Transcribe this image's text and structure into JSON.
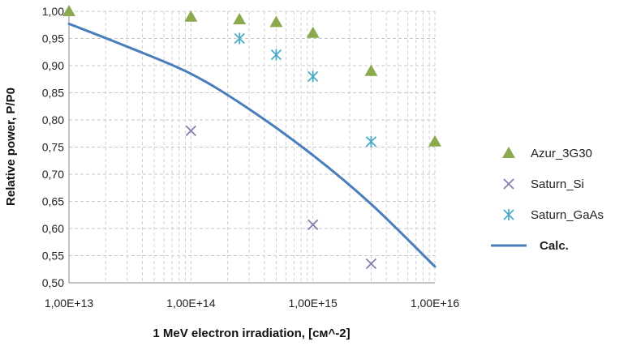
{
  "chart_data": {
    "type": "scatter",
    "title": "",
    "xlabel": "1 MeV electron irradiation, [см^-2]",
    "ylabel": "Relative power, P/P0",
    "x_scale": "log",
    "xlim": [
      10000000000000.0,
      1e+16
    ],
    "ylim": [
      0.5,
      1.0
    ],
    "x_tick_labels": [
      "1,00E+13",
      "1,00E+14",
      "1,00E+15",
      "1,00E+16"
    ],
    "y_tick_labels": [
      "1,00",
      "0,95",
      "0,90",
      "0,85",
      "0,80",
      "0,75",
      "0,70",
      "0,65",
      "0,60",
      "0,55",
      "0,50"
    ],
    "grid": "dashed",
    "legend_position": "right",
    "series": [
      {
        "name": "Azur_3G30",
        "kind": "scatter",
        "marker": "triangle",
        "color": "#8BAA4E",
        "points": [
          [
            10000000000000.0,
            1.0
          ],
          [
            100000000000000.0,
            0.99
          ],
          [
            250000000000000.0,
            0.985
          ],
          [
            500000000000000.0,
            0.98
          ],
          [
            1000000000000000.0,
            0.96
          ],
          [
            3000000000000000.0,
            0.89
          ],
          [
            1e+16,
            0.76
          ]
        ]
      },
      {
        "name": "Saturn_Si",
        "kind": "scatter",
        "marker": "x",
        "color": "#8A7BB0",
        "points": [
          [
            100000000000000.0,
            0.78
          ],
          [
            1000000000000000.0,
            0.607
          ],
          [
            3000000000000000.0,
            0.535
          ]
        ]
      },
      {
        "name": "Saturn_GaAs",
        "kind": "scatter",
        "marker": "asterisk",
        "color": "#4BACC6",
        "points": [
          [
            250000000000000.0,
            0.95
          ],
          [
            500000000000000.0,
            0.92
          ],
          [
            1000000000000000.0,
            0.88
          ],
          [
            3000000000000000.0,
            0.76
          ]
        ]
      },
      {
        "name": "Calc.",
        "kind": "line",
        "color": "#4A7EBB",
        "points": [
          [
            10000000000000.0,
            0.977
          ],
          [
            30000000000000.0,
            0.935
          ],
          [
            100000000000000.0,
            0.885
          ],
          [
            300000000000000.0,
            0.82
          ],
          [
            1000000000000000.0,
            0.735
          ],
          [
            3000000000000000.0,
            0.645
          ],
          [
            1e+16,
            0.53
          ]
        ]
      }
    ]
  }
}
